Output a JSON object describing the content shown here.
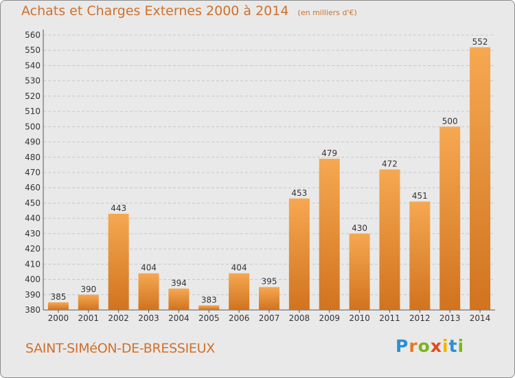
{
  "title": "Achats et Charges Externes 2000 à 2014",
  "unit_note": "(en milliers d'€)",
  "commune": "SAINT-SIMéON-DE-BRESSIEUX",
  "brand": {
    "text": "Proxiti",
    "letter_colors": [
      "#2a8fd4",
      "#e87722",
      "#7ab51d",
      "#e8461e",
      "#f2b300",
      "#2a8fd4",
      "#7ab51d"
    ]
  },
  "colors": {
    "bar_light": "#f6a851",
    "bar_dark": "#d1731f",
    "grid": "#c8c8c8",
    "title": "#d0702a",
    "text": "#333333"
  },
  "chart_data": {
    "type": "bar",
    "categories": [
      "2000",
      "2001",
      "2002",
      "2003",
      "2004",
      "2005",
      "2006",
      "2007",
      "2008",
      "2009",
      "2010",
      "2011",
      "2012",
      "2013",
      "2014"
    ],
    "values": [
      385,
      390,
      443,
      404,
      394,
      383,
      404,
      395,
      453,
      479,
      430,
      472,
      451,
      500,
      552
    ],
    "ylim": [
      380,
      560
    ],
    "ytick_step": 10,
    "grid": true
  }
}
